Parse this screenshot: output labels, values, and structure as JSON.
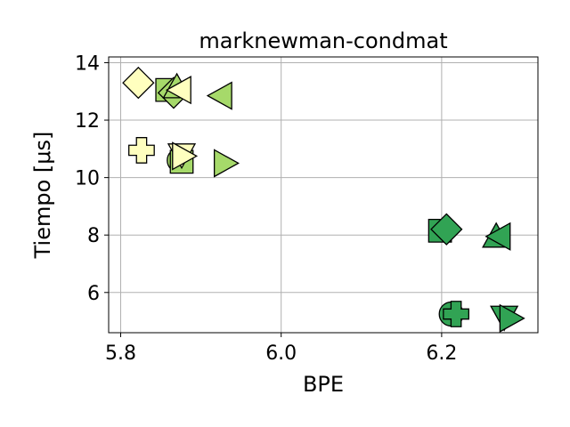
{
  "chart_data": {
    "type": "scatter",
    "title": "marknewman-condmat",
    "xlabel": "BPE",
    "ylabel": "Tiempo [μs]",
    "xlim": [
      5.785,
      6.32
    ],
    "ylim": [
      4.6,
      14.2
    ],
    "xticks": [
      5.8,
      6.0,
      6.2
    ],
    "xtick_labels": [
      "5.8",
      "6.0",
      "6.2"
    ],
    "yticks": [
      6,
      8,
      10,
      12,
      14
    ],
    "ytick_labels": [
      "6",
      "8",
      "10",
      "12",
      "14"
    ],
    "grid": true,
    "colors": {
      "light_yellow": "#ffffbf",
      "light_green": "#a6d96a",
      "dark_green": "#31a354"
    },
    "points": [
      {
        "x": 5.822,
        "y": 13.3,
        "marker": "diamond",
        "color": "light_yellow"
      },
      {
        "x": 5.858,
        "y": 13.05,
        "marker": "square",
        "color": "light_green"
      },
      {
        "x": 5.866,
        "y": 12.95,
        "marker": "diamond",
        "color": "light_green"
      },
      {
        "x": 5.87,
        "y": 13.15,
        "marker": "triangle-up",
        "color": "light_green"
      },
      {
        "x": 5.874,
        "y": 13.05,
        "marker": "triangle-left",
        "color": "light_yellow"
      },
      {
        "x": 5.925,
        "y": 12.85,
        "marker": "triangle-left",
        "color": "light_green"
      },
      {
        "x": 5.826,
        "y": 10.95,
        "marker": "plus",
        "color": "light_yellow"
      },
      {
        "x": 5.873,
        "y": 10.6,
        "marker": "circle",
        "color": "light_green"
      },
      {
        "x": 5.876,
        "y": 10.55,
        "marker": "square",
        "color": "light_green"
      },
      {
        "x": 5.876,
        "y": 10.8,
        "marker": "triangle-down",
        "color": "light_yellow"
      },
      {
        "x": 5.878,
        "y": 10.75,
        "marker": "triangle-right",
        "color": "light_yellow"
      },
      {
        "x": 5.93,
        "y": 10.5,
        "marker": "triangle-right",
        "color": "light_green"
      },
      {
        "x": 6.198,
        "y": 8.15,
        "marker": "square",
        "color": "dark_green"
      },
      {
        "x": 6.206,
        "y": 8.2,
        "marker": "diamond",
        "color": "dark_green"
      },
      {
        "x": 6.268,
        "y": 7.95,
        "marker": "triangle-up",
        "color": "dark_green"
      },
      {
        "x": 6.272,
        "y": 7.95,
        "marker": "triangle-left",
        "color": "dark_green"
      },
      {
        "x": 6.212,
        "y": 5.25,
        "marker": "circle",
        "color": "dark_green"
      },
      {
        "x": 6.218,
        "y": 5.25,
        "marker": "plus",
        "color": "dark_green"
      },
      {
        "x": 6.278,
        "y": 5.15,
        "marker": "triangle-down",
        "color": "dark_green"
      },
      {
        "x": 6.286,
        "y": 5.1,
        "marker": "triangle-right",
        "color": "dark_green"
      }
    ]
  }
}
